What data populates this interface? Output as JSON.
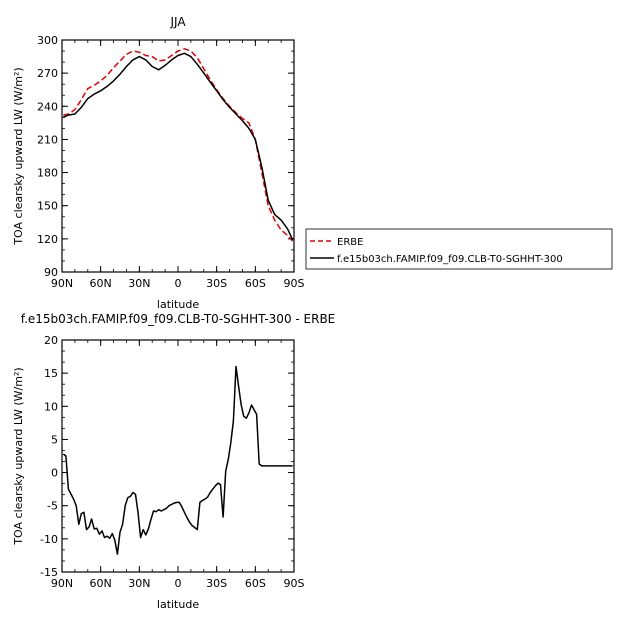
{
  "chart_data": [
    {
      "type": "line",
      "title": "JJA",
      "xlabel": "latitude",
      "ylabel": "TOA clearsky upward LW (W/m²)",
      "xlim": [
        90,
        -90
      ],
      "ylim": [
        90,
        300
      ],
      "x_ticks": [
        90,
        60,
        30,
        0,
        -30,
        -60,
        -90
      ],
      "x_tick_labels": [
        "90N",
        "60N",
        "30N",
        "0",
        "30S",
        "60S",
        "90S"
      ],
      "y_ticks": [
        90,
        120,
        150,
        180,
        210,
        240,
        270,
        300
      ],
      "y_tick_labels": [
        "90",
        "120",
        "150",
        "180",
        "210",
        "240",
        "270",
        "300"
      ],
      "legend_position": "right",
      "series": [
        {
          "name": "ERBE",
          "color": "#e00000",
          "style": "dashed",
          "x": [
            89,
            85,
            80,
            75,
            70,
            65,
            60,
            55,
            50,
            45,
            40,
            35,
            30,
            25,
            20,
            15,
            10,
            5,
            0,
            -5,
            -10,
            -15,
            -20,
            -25,
            -30,
            -35,
            -40,
            -45,
            -50,
            -55,
            -60,
            -65,
            -70,
            -75,
            -80,
            -85,
            -89
          ],
          "y": [
            232,
            233,
            237,
            246,
            256,
            259,
            263,
            268,
            275,
            281,
            287,
            290,
            289,
            286,
            285,
            281,
            282,
            286,
            290,
            292,
            290,
            284,
            274,
            264,
            255,
            247,
            240,
            234,
            229,
            225,
            210,
            180,
            150,
            137,
            128,
            123,
            118
          ]
        },
        {
          "name": "f.e15b03ch.FAMIP.f09_f09.CLB-T0-SGHHT-300",
          "color": "#000000",
          "style": "solid",
          "x": [
            89,
            85,
            80,
            75,
            70,
            65,
            60,
            55,
            50,
            45,
            40,
            35,
            30,
            25,
            20,
            15,
            10,
            5,
            0,
            -5,
            -10,
            -15,
            -20,
            -25,
            -30,
            -35,
            -40,
            -45,
            -50,
            -55,
            -60,
            -65,
            -70,
            -75,
            -80,
            -85,
            -89
          ],
          "y": [
            230,
            232,
            233,
            239,
            247,
            251,
            254,
            258,
            263,
            269,
            276,
            282,
            285,
            282,
            276,
            273,
            277,
            282,
            286,
            288,
            285,
            278,
            270,
            262,
            254,
            246,
            239,
            233,
            227,
            220,
            210,
            185,
            155,
            142,
            137,
            129,
            119
          ]
        }
      ]
    },
    {
      "type": "line",
      "title": "f.e15b03ch.FAMIP.f09_f09.CLB-T0-SGHHT-300  -  ERBE",
      "xlabel": "latitude",
      "ylabel": "TOA clearsky upward LW (W/m²)",
      "xlim": [
        90,
        -90
      ],
      "ylim": [
        -15,
        20
      ],
      "x_ticks": [
        90,
        60,
        30,
        0,
        -30,
        -60,
        -90
      ],
      "x_tick_labels": [
        "90N",
        "60N",
        "30N",
        "0",
        "30S",
        "60S",
        "90S"
      ],
      "y_ticks": [
        -15,
        -10,
        -5,
        0,
        5,
        10,
        15,
        20
      ],
      "y_tick_labels": [
        "-15",
        "-10",
        "-5",
        "0",
        "5",
        "10",
        "15",
        "20"
      ],
      "series": [
        {
          "name": "",
          "color": "#000000",
          "style": "solid",
          "x": [
            89,
            87,
            85,
            81,
            79,
            77,
            75,
            73,
            71,
            69,
            67,
            65,
            63,
            61,
            59,
            57,
            55,
            53,
            51,
            49,
            47,
            45,
            43,
            41,
            39,
            37,
            35,
            33,
            31,
            29,
            27,
            25,
            23,
            21,
            19,
            17,
            15,
            13,
            11,
            9,
            7,
            5,
            3,
            1,
            -1,
            -3,
            -5,
            -7,
            -9,
            -11,
            -13,
            -15,
            -17,
            -19,
            -21,
            -23,
            -25,
            -27,
            -29,
            -31,
            -33,
            -35,
            -37,
            -39,
            -41,
            -43,
            -45,
            -47,
            -49,
            -51,
            -53,
            -55,
            -57,
            -59,
            -61,
            -63,
            -65,
            -67,
            -69,
            -71,
            -73,
            -75,
            -77,
            -79,
            -81,
            -83,
            -85,
            -87,
            -89
          ],
          "y": [
            2.8,
            2.5,
            -2.5,
            -4.0,
            -5.0,
            -7.8,
            -6.2,
            -6.0,
            -8.6,
            -8.2,
            -7.0,
            -8.5,
            -8.4,
            -9.3,
            -8.8,
            -9.8,
            -9.6,
            -9.9,
            -9.2,
            -10.2,
            -12.3,
            -9.0,
            -7.8,
            -5.0,
            -3.8,
            -3.6,
            -3.0,
            -3.3,
            -6.0,
            -9.8,
            -8.6,
            -9.4,
            -8.5,
            -7.1,
            -5.8,
            -5.9,
            -5.6,
            -5.8,
            -5.6,
            -5.4,
            -5.0,
            -4.8,
            -4.6,
            -4.5,
            -4.5,
            -5.2,
            -6.0,
            -6.8,
            -7.5,
            -8.0,
            -8.3,
            -8.6,
            -4.5,
            -4.2,
            -4.0,
            -3.7,
            -3.0,
            -2.5,
            -2.0,
            -1.6,
            -1.8,
            -6.7,
            0.2,
            2.0,
            4.5,
            7.8,
            16.0,
            13.0,
            10.2,
            8.5,
            8.2,
            9.0,
            10.2,
            9.5,
            8.8,
            1.3,
            1.0,
            1.0,
            1.0,
            1.0,
            1.0,
            1.0,
            1.0,
            1.0,
            1.0,
            1.0,
            1.0,
            1.0,
            1.0
          ]
        }
      ]
    }
  ]
}
